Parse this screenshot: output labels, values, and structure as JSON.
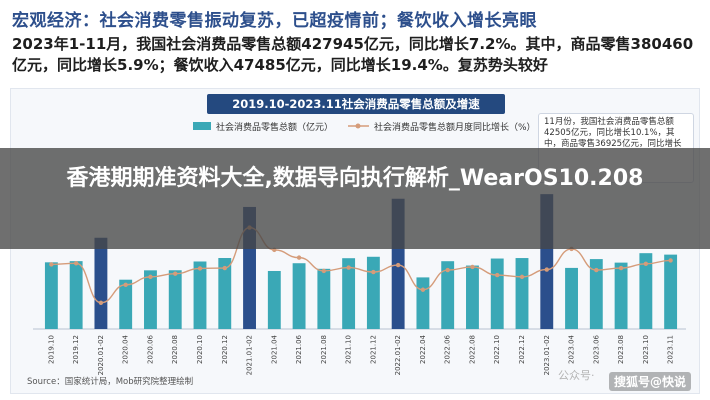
{
  "header": {
    "title": "宏观经济：社会消费零售振动复苏，已超疫情前；餐饮收入增长亮眼",
    "summary": "2023年1-11月，我国社会消费品零售总额427945亿元，同比增长7.2%。其中，商品零售380460亿元，同比增长5.9%；餐饮收入47485亿元，同比增长19.4%。复苏势头较好"
  },
  "chart_card": {
    "box_title": "2019.10-2023.11社会消费品零售总额及增速",
    "legend": [
      {
        "label": "社会消费品零售总额（亿元）"
      },
      {
        "label": "社会消费品零售总额月度同比增长（%）"
      }
    ],
    "callout": "11月份，我国社会消费品零售总额42505亿元，同比增长10.1%，其中，商品零售36925亿元，同比增长",
    "source": "Source：国家统计局，Mob研究院整理绘制",
    "watermark": "公众号·"
  },
  "overlay": {
    "text": "香港期期准资料大全,数据导向执行解析_WearOS10.208"
  },
  "sohu_tag": "搜狐号@快说",
  "colors": {
    "bar": "#3aa8b6",
    "bar_highlight": "#2b4f8c",
    "line": "#d59c7a",
    "line_marker": "#d59c7a",
    "title_blue": "#2d4f8c",
    "box_blue": "#24497f"
  },
  "chart_data": {
    "type": "bar",
    "title": "2019.10-2023.11社会消费品零售总额及增速",
    "xlabel": "",
    "ylabel": "",
    "categories": [
      "2019.10",
      "2019.12",
      "2020.01-02",
      "2020.04",
      "2020.06",
      "2020.08",
      "2020.10",
      "2020.12",
      "2021.01-02",
      "2021.04",
      "2021.06",
      "2021.08",
      "2021.10",
      "2021.12",
      "2022.01-02",
      "2022.04",
      "2022.06",
      "2022.08",
      "2022.10",
      "2022.12",
      "2023.01-02",
      "2023.04",
      "2023.06",
      "2023.08",
      "2023.10",
      "2023.11"
    ],
    "series": [
      {
        "name": "社会消费品零售总额（亿元）",
        "type": "bar",
        "values": [
          38104,
          38777,
          52130,
          28178,
          33526,
          33571,
          38576,
          40566,
          69737,
          33153,
          37586,
          34395,
          40454,
          41269,
          74426,
          29483,
          38742,
          36258,
          40271,
          40542,
          77067,
          34910,
          39951,
          37933,
          43333,
          42505
        ]
      },
      {
        "name": "社会消费品零售总额月度同比增长（%）",
        "type": "line",
        "values": [
          7.2,
          8.0,
          -20.5,
          -7.5,
          -1.8,
          0.5,
          4.3,
          4.6,
          33.8,
          17.7,
          12.1,
          2.5,
          4.9,
          1.7,
          6.7,
          -11.1,
          3.1,
          5.4,
          -0.5,
          -1.8,
          3.5,
          18.4,
          3.1,
          4.6,
          7.6,
          10.1
        ]
      }
    ],
    "ylim": [
      0,
      80000
    ],
    "y2lim": [
      -25,
      40
    ],
    "grid": false,
    "legend_position": "top-left"
  }
}
